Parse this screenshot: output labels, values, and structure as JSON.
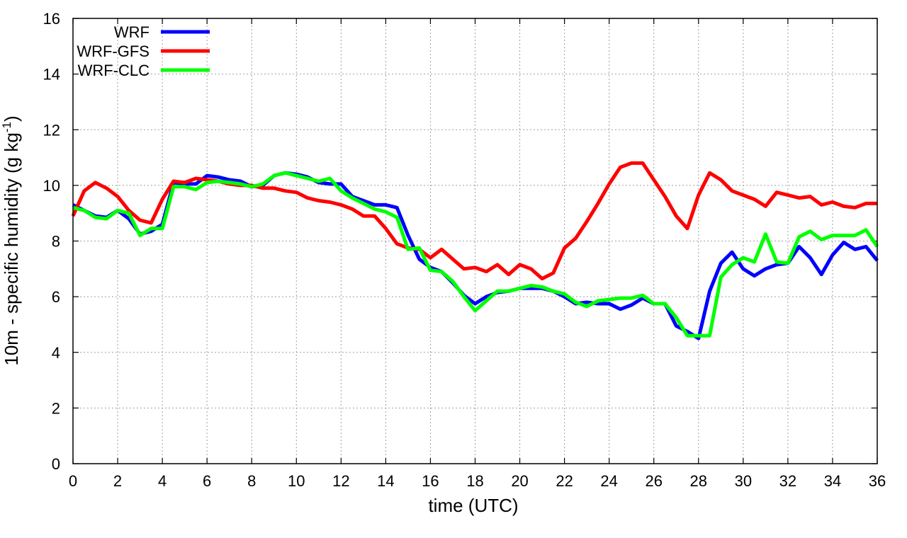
{
  "chart_data": {
    "type": "line",
    "xlabel": "time (UTC)",
    "ylabel_main": "10m - specific humidity (g kg",
    "ylabel_sup": "-1",
    "ylabel_end": ")",
    "xlim": [
      0,
      36
    ],
    "ylim": [
      0,
      16
    ],
    "xticks": [
      0,
      2,
      4,
      6,
      8,
      10,
      12,
      14,
      16,
      18,
      20,
      22,
      24,
      26,
      28,
      30,
      32,
      34,
      36
    ],
    "yticks": [
      0,
      2,
      4,
      6,
      8,
      10,
      12,
      14,
      16
    ],
    "grid": true,
    "legend_position": "top-left",
    "x": [
      0,
      0.5,
      1,
      1.5,
      2,
      2.5,
      3,
      3.5,
      4,
      4.5,
      5,
      5.5,
      6,
      6.5,
      7,
      7.5,
      8,
      8.5,
      9,
      9.5,
      10,
      10.5,
      11,
      11.5,
      12,
      12.5,
      13,
      13.5,
      14,
      14.5,
      15,
      15.5,
      16,
      16.5,
      17,
      17.5,
      18,
      18.5,
      19,
      19.5,
      20,
      20.5,
      21,
      21.5,
      22,
      22.5,
      23,
      23.5,
      24,
      24.5,
      25,
      25.5,
      26,
      26.5,
      27,
      27.5,
      28,
      28.5,
      29,
      29.5,
      30,
      30.5,
      31,
      31.5,
      32,
      32.5,
      33,
      33.5,
      34,
      34.5,
      35,
      35.5,
      36
    ],
    "series": [
      {
        "name": "WRF",
        "color": "#0000ff",
        "values": [
          9.3,
          9.1,
          8.9,
          8.85,
          9.1,
          8.8,
          8.25,
          8.35,
          8.6,
          10.1,
          10.05,
          10.05,
          10.35,
          10.3,
          10.2,
          10.15,
          9.95,
          10.0,
          10.35,
          10.45,
          10.4,
          10.3,
          10.1,
          10.05,
          10.05,
          9.6,
          9.45,
          9.3,
          9.3,
          9.2,
          8.2,
          7.35,
          7.05,
          6.9,
          6.5,
          6.05,
          5.75,
          6.0,
          6.15,
          6.2,
          6.3,
          6.3,
          6.3,
          6.2,
          6.0,
          5.75,
          5.8,
          5.75,
          5.75,
          5.55,
          5.7,
          5.95,
          5.75,
          5.75,
          4.95,
          4.75,
          4.5,
          6.2,
          7.2,
          7.6,
          7.0,
          6.75,
          7.0,
          7.15,
          7.2,
          7.8,
          7.4,
          6.8,
          7.5,
          7.95,
          7.7,
          7.8,
          7.3
        ]
      },
      {
        "name": "WRF-GFS",
        "color": "#ff0000",
        "values": [
          8.9,
          9.8,
          10.1,
          9.9,
          9.6,
          9.1,
          8.75,
          8.65,
          9.5,
          10.15,
          10.1,
          10.25,
          10.2,
          10.15,
          10.05,
          10.0,
          10.0,
          9.9,
          9.9,
          9.8,
          9.75,
          9.55,
          9.45,
          9.4,
          9.3,
          9.15,
          8.9,
          8.9,
          8.45,
          7.9,
          7.75,
          7.7,
          7.4,
          7.7,
          7.35,
          7.0,
          7.05,
          6.9,
          7.15,
          6.8,
          7.15,
          7.0,
          6.65,
          6.85,
          7.75,
          8.1,
          8.7,
          9.35,
          10.05,
          10.65,
          10.8,
          10.8,
          10.2,
          9.6,
          8.9,
          8.45,
          9.65,
          10.45,
          10.2,
          9.8,
          9.65,
          9.5,
          9.25,
          9.75,
          9.65,
          9.55,
          9.6,
          9.3,
          9.4,
          9.25,
          9.2,
          9.35,
          9.35
        ]
      },
      {
        "name": "WRF-CLC",
        "color": "#00ff00",
        "values": [
          9.2,
          9.1,
          8.85,
          8.8,
          9.1,
          9.0,
          8.2,
          8.45,
          8.45,
          9.95,
          9.95,
          9.85,
          10.1,
          10.15,
          10.1,
          10.05,
          9.95,
          10.05,
          10.35,
          10.45,
          10.35,
          10.25,
          10.15,
          10.25,
          9.8,
          9.55,
          9.35,
          9.15,
          9.05,
          8.85,
          7.7,
          7.75,
          6.95,
          6.9,
          6.55,
          6.0,
          5.5,
          5.85,
          6.2,
          6.2,
          6.3,
          6.4,
          6.35,
          6.2,
          6.1,
          5.8,
          5.65,
          5.85,
          5.9,
          5.95,
          5.95,
          6.05,
          5.75,
          5.75,
          5.25,
          4.6,
          4.6,
          4.6,
          6.7,
          7.15,
          7.4,
          7.25,
          8.25,
          7.25,
          7.2,
          8.15,
          8.35,
          8.05,
          8.2,
          8.2,
          8.2,
          8.4,
          7.8
        ]
      }
    ]
  }
}
